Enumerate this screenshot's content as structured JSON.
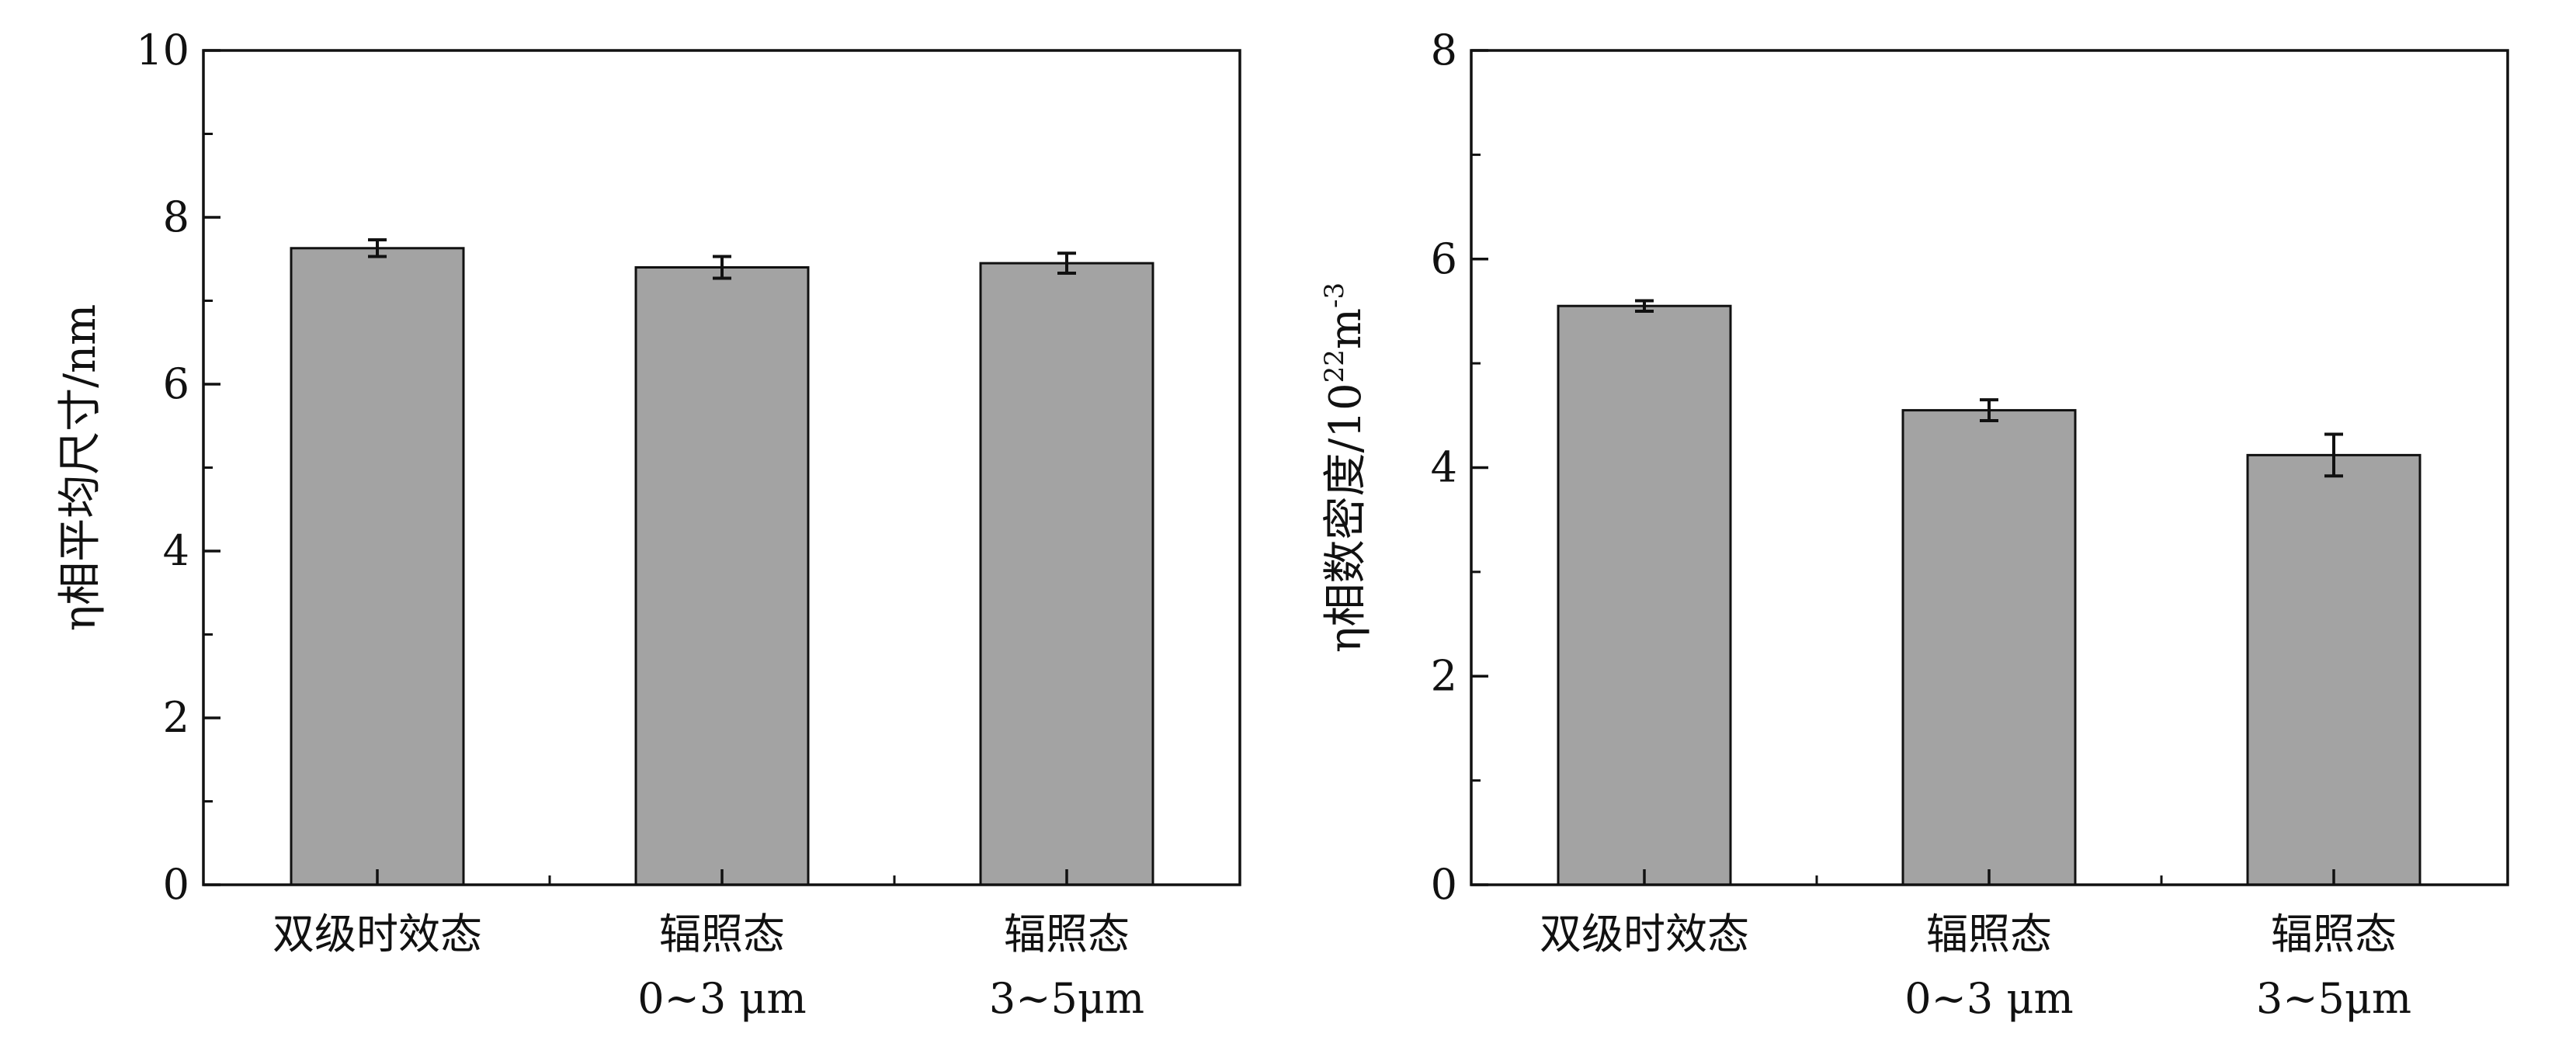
{
  "chart_data": [
    {
      "type": "bar",
      "title": "",
      "xlabel": "",
      "ylabel": "η相平均尺寸/nm",
      "ylim": [
        0,
        10
      ],
      "yticks": [
        "0",
        "2",
        "4",
        "6",
        "8",
        "10"
      ],
      "categories": [
        {
          "line1": "双级时效态",
          "line2": ""
        },
        {
          "line1": "辐照态",
          "line2": "0~3 μm"
        },
        {
          "line1": "辐照态",
          "line2": "3~5μm"
        }
      ],
      "values": [
        7.63,
        7.4,
        7.45
      ],
      "errors": [
        0.1,
        0.13,
        0.12
      ],
      "grid": false,
      "bar_color": "#a3a3a3"
    },
    {
      "type": "bar",
      "title": "",
      "xlabel": "",
      "ylabel": {
        "main": "η相数密度/10",
        "exp1": "22",
        "mid": "m",
        "exp2": "-3"
      },
      "ylim": [
        0,
        8
      ],
      "yticks": [
        "0",
        "2",
        "4",
        "6",
        "8"
      ],
      "categories": [
        {
          "line1": "双级时效态",
          "line2": ""
        },
        {
          "line1": "辐照态",
          "line2": "0~3 μm"
        },
        {
          "line1": "辐照态",
          "line2": "3~5μm"
        }
      ],
      "values": [
        5.55,
        4.55,
        4.12
      ],
      "errors": [
        0.05,
        0.1,
        0.2
      ],
      "grid": false,
      "bar_color": "#a3a3a3"
    }
  ]
}
